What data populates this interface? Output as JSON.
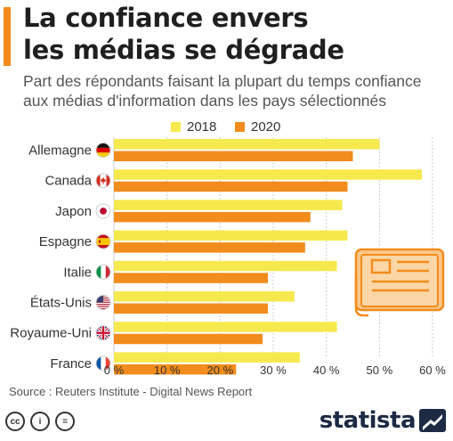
{
  "header": {
    "title_line1": "La confiance envers",
    "title_line2": "les médias se dégrade",
    "subtitle_line1": "Part des répondants faisant la plupart du temps confiance",
    "subtitle_line2": "aux médias d'information dans les pays sélectionnés"
  },
  "footer": {
    "source": "Source : Reuters Institute - Digital News Report",
    "cc_labels": [
      "cc",
      "i",
      "="
    ],
    "logo": "statista"
  },
  "colors": {
    "s2018": "#f6e94d",
    "s2020": "#f28c1c",
    "accent": "#f28c1c",
    "grid": "#cccccc"
  },
  "chart_data": {
    "type": "bar",
    "orientation": "horizontal",
    "categories": [
      "Allemagne",
      "Canada",
      "Japon",
      "Espagne",
      "Italie",
      "États-Unis",
      "Royaume-Uni",
      "France"
    ],
    "flags": [
      "flag-germany-icon",
      "flag-canada-icon",
      "flag-japan-icon",
      "flag-spain-icon",
      "flag-italy-icon",
      "flag-usa-icon",
      "flag-uk-icon",
      "flag-france-icon"
    ],
    "series": [
      {
        "name": "2018",
        "values": [
          50,
          58,
          43,
          44,
          42,
          34,
          42,
          35
        ]
      },
      {
        "name": "2020",
        "values": [
          45,
          44,
          37,
          36,
          29,
          29,
          28,
          23
        ]
      }
    ],
    "xlim": [
      0,
      60
    ],
    "xticks": [
      0,
      10,
      20,
      30,
      40,
      50,
      60
    ],
    "tick_labels": [
      "0 %",
      "10 %",
      "20 %",
      "30 %",
      "40 %",
      "50 %",
      "60 %"
    ],
    "grid": true,
    "legend_position": "top-center"
  }
}
